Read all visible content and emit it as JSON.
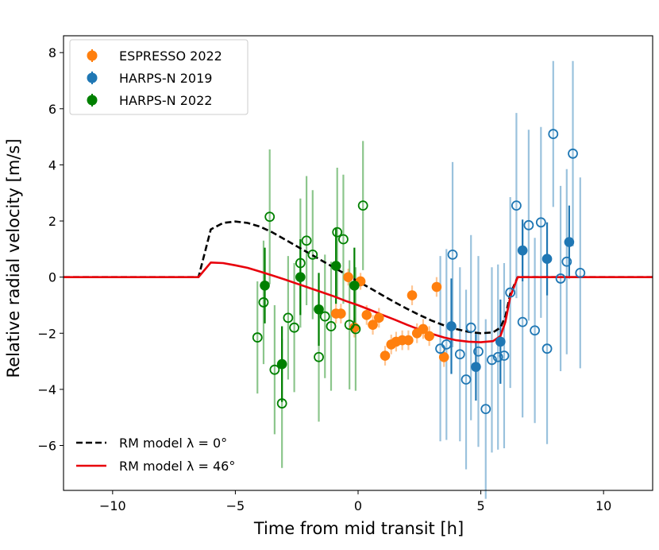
{
  "chart_data": {
    "type": "scatter",
    "title": "",
    "xlabel": "Time from mid transit [h]",
    "ylabel": "Relative radial velocity [m/s]",
    "xlim": [
      -12,
      12
    ],
    "ylim": [
      -7.6,
      8.6
    ],
    "xticks": [
      -10,
      -5,
      0,
      5,
      10
    ],
    "xtick_labels": [
      "−10",
      "−5",
      "0",
      "5",
      "10"
    ],
    "yticks": [
      -6,
      -4,
      -2,
      0,
      2,
      4,
      6,
      8
    ],
    "ytick_labels": [
      "−6",
      "−4",
      "−2",
      "0",
      "2",
      "4",
      "6",
      "8"
    ],
    "grid": false,
    "legend_data": {
      "placement": "top-left",
      "entries": [
        "ESPRESSO 2022",
        "HARPS-N 2019",
        "HARPS-N 2022"
      ]
    },
    "legend_models": {
      "placement": "bottom-left",
      "entries": [
        "RM model λ = 0°",
        "RM model λ = 46°"
      ]
    },
    "series": [
      {
        "name": "ESPRESSO 2022",
        "color": "#ff7f0e",
        "filled_points": [
          {
            "x": -0.4,
            "y": 0.0,
            "err": 0.3
          },
          {
            "x": -0.15,
            "y": -1.8,
            "err": 0.35
          },
          {
            "x": 0.1,
            "y": -0.15,
            "err": 0.3
          },
          {
            "x": 0.35,
            "y": -1.35,
            "err": 0.35
          },
          {
            "x": 0.6,
            "y": -1.7,
            "err": 0.35
          },
          {
            "x": 0.85,
            "y": -1.45,
            "err": 0.35
          },
          {
            "x": -0.9,
            "y": -1.3,
            "err": 0.35
          },
          {
            "x": -0.7,
            "y": -1.3,
            "err": 0.35
          },
          {
            "x": 1.1,
            "y": -2.8,
            "err": 0.35
          },
          {
            "x": 1.35,
            "y": -2.4,
            "err": 0.35
          },
          {
            "x": 1.55,
            "y": -2.3,
            "err": 0.35
          },
          {
            "x": 1.8,
            "y": -2.25,
            "err": 0.35
          },
          {
            "x": 2.05,
            "y": -2.25,
            "err": 0.35
          },
          {
            "x": 2.2,
            "y": -0.65,
            "err": 0.35
          },
          {
            "x": 2.4,
            "y": -2.0,
            "err": 0.35
          },
          {
            "x": 2.65,
            "y": -1.85,
            "err": 0.35
          },
          {
            "x": 2.9,
            "y": -2.1,
            "err": 0.35
          },
          {
            "x": 3.2,
            "y": -0.35,
            "err": 0.35
          },
          {
            "x": 3.5,
            "y": -2.85,
            "err": 0.35
          }
        ]
      },
      {
        "name": "HARPS-N 2019",
        "color": "#1f77b4",
        "filled_points": [
          {
            "x": 3.8,
            "y": -1.75,
            "err": 1.7
          },
          {
            "x": 4.8,
            "y": -3.2,
            "err": 1.2
          },
          {
            "x": 5.8,
            "y": -2.3,
            "err": 1.5
          },
          {
            "x": 6.7,
            "y": 0.95,
            "err": 1.1
          },
          {
            "x": 7.7,
            "y": 0.65,
            "err": 1.3
          },
          {
            "x": 8.6,
            "y": 1.25,
            "err": 1.3
          }
        ],
        "open_points": [
          {
            "x": 3.35,
            "y": -2.55,
            "err": 3.3
          },
          {
            "x": 3.6,
            "y": -2.4,
            "err": 3.4
          },
          {
            "x": 3.85,
            "y": 0.8,
            "err": 3.3
          },
          {
            "x": 4.15,
            "y": -2.75,
            "err": 3.1
          },
          {
            "x": 4.4,
            "y": -3.65,
            "err": 3.2
          },
          {
            "x": 4.6,
            "y": -1.8,
            "err": 3.3
          },
          {
            "x": 4.9,
            "y": -2.65,
            "err": 3.4
          },
          {
            "x": 5.2,
            "y": -4.7,
            "err": 3.2
          },
          {
            "x": 5.45,
            "y": -2.95,
            "err": 3.3
          },
          {
            "x": 5.7,
            "y": -2.85,
            "err": 3.3
          },
          {
            "x": 5.95,
            "y": -2.8,
            "err": 3.3
          },
          {
            "x": 6.2,
            "y": -0.55,
            "err": 3.4
          },
          {
            "x": 6.45,
            "y": 2.55,
            "err": 3.3
          },
          {
            "x": 6.7,
            "y": -1.6,
            "err": 3.4
          },
          {
            "x": 6.95,
            "y": 1.85,
            "err": 3.4
          },
          {
            "x": 7.2,
            "y": -1.9,
            "err": 3.3
          },
          {
            "x": 7.45,
            "y": 1.95,
            "err": 3.4
          },
          {
            "x": 7.7,
            "y": -2.55,
            "err": 3.4
          },
          {
            "x": 7.95,
            "y": 5.1,
            "err": 2.6
          },
          {
            "x": 8.25,
            "y": -0.05,
            "err": 3.3
          },
          {
            "x": 8.5,
            "y": 0.55,
            "err": 3.3
          },
          {
            "x": 8.75,
            "y": 4.4,
            "err": 3.3
          },
          {
            "x": 9.05,
            "y": 0.15,
            "err": 3.4
          }
        ]
      },
      {
        "name": "HARPS-N 2022",
        "color": "#008000",
        "filled_points": [
          {
            "x": -3.8,
            "y": -0.3,
            "err": 1.35
          },
          {
            "x": -3.1,
            "y": -3.1,
            "err": 1.35
          },
          {
            "x": -2.35,
            "y": 0.0,
            "err": 1.35
          },
          {
            "x": -1.6,
            "y": -1.15,
            "err": 1.3
          },
          {
            "x": -0.9,
            "y": 0.4,
            "err": 1.35
          },
          {
            "x": -0.15,
            "y": -0.3,
            "err": 1.35
          }
        ],
        "open_points": [
          {
            "x": -4.1,
            "y": -2.15,
            "err": 2.0
          },
          {
            "x": -3.85,
            "y": -0.9,
            "err": 2.2
          },
          {
            "x": -3.6,
            "y": 2.15,
            "err": 2.4
          },
          {
            "x": -3.4,
            "y": -3.3,
            "err": 2.3
          },
          {
            "x": -3.1,
            "y": -4.5,
            "err": 2.3
          },
          {
            "x": -2.85,
            "y": -1.45,
            "err": 2.2
          },
          {
            "x": -2.6,
            "y": -1.8,
            "err": 2.3
          },
          {
            "x": -2.35,
            "y": 0.5,
            "err": 2.3
          },
          {
            "x": -2.1,
            "y": 1.3,
            "err": 2.3
          },
          {
            "x": -1.85,
            "y": 0.8,
            "err": 2.3
          },
          {
            "x": -1.6,
            "y": -2.85,
            "err": 2.3
          },
          {
            "x": -1.35,
            "y": -1.4,
            "err": 2.2
          },
          {
            "x": -1.1,
            "y": -1.75,
            "err": 2.3
          },
          {
            "x": -0.85,
            "y": 1.6,
            "err": 2.3
          },
          {
            "x": -0.6,
            "y": 1.35,
            "err": 2.3
          },
          {
            "x": -0.35,
            "y": -1.7,
            "err": 2.3
          },
          {
            "x": -0.1,
            "y": -1.85,
            "err": 2.2
          },
          {
            "x": 0.2,
            "y": 2.55,
            "err": 2.3
          }
        ]
      }
    ],
    "models": [
      {
        "name": "RM model λ = 0°",
        "color": "#000000",
        "style": "dashed",
        "points": [
          [
            -12,
            0
          ],
          [
            -6.5,
            0
          ],
          [
            -6.0,
            1.7
          ],
          [
            -5.5,
            1.93
          ],
          [
            -5.0,
            1.98
          ],
          [
            -4.5,
            1.93
          ],
          [
            -4.0,
            1.8
          ],
          [
            -3.5,
            1.6
          ],
          [
            -3.0,
            1.35
          ],
          [
            -2.5,
            1.1
          ],
          [
            -2.0,
            0.85
          ],
          [
            -1.5,
            0.6
          ],
          [
            -1.0,
            0.35
          ],
          [
            -0.5,
            0.1
          ],
          [
            0.0,
            -0.15
          ],
          [
            0.5,
            -0.4
          ],
          [
            1.0,
            -0.65
          ],
          [
            1.5,
            -0.9
          ],
          [
            2.0,
            -1.13
          ],
          [
            2.5,
            -1.35
          ],
          [
            3.0,
            -1.55
          ],
          [
            3.5,
            -1.72
          ],
          [
            4.0,
            -1.85
          ],
          [
            4.5,
            -1.95
          ],
          [
            5.0,
            -2.0
          ],
          [
            5.5,
            -1.97
          ],
          [
            5.8,
            -1.8
          ],
          [
            6.0,
            -1.4
          ],
          [
            6.2,
            -0.6
          ],
          [
            6.5,
            0
          ],
          [
            12,
            0
          ]
        ]
      },
      {
        "name": "RM model λ = 46°",
        "color": "#e8000b",
        "style": "solid",
        "points": [
          [
            -12,
            0
          ],
          [
            -6.5,
            0
          ],
          [
            -6.0,
            0.52
          ],
          [
            -5.5,
            0.5
          ],
          [
            -5.0,
            0.42
          ],
          [
            -4.5,
            0.33
          ],
          [
            -4.0,
            0.2
          ],
          [
            -3.5,
            0.06
          ],
          [
            -3.0,
            -0.08
          ],
          [
            -2.5,
            -0.23
          ],
          [
            -2.0,
            -0.38
          ],
          [
            -1.5,
            -0.53
          ],
          [
            -1.0,
            -0.68
          ],
          [
            -0.5,
            -0.85
          ],
          [
            0.0,
            -1.0
          ],
          [
            0.5,
            -1.17
          ],
          [
            1.0,
            -1.35
          ],
          [
            1.5,
            -1.52
          ],
          [
            2.0,
            -1.7
          ],
          [
            2.5,
            -1.87
          ],
          [
            3.0,
            -2.02
          ],
          [
            3.5,
            -2.15
          ],
          [
            4.0,
            -2.25
          ],
          [
            4.5,
            -2.3
          ],
          [
            5.0,
            -2.32
          ],
          [
            5.5,
            -2.28
          ],
          [
            5.8,
            -2.1
          ],
          [
            6.0,
            -1.6
          ],
          [
            6.2,
            -0.7
          ],
          [
            6.5,
            0
          ],
          [
            12,
            0
          ]
        ]
      }
    ]
  }
}
